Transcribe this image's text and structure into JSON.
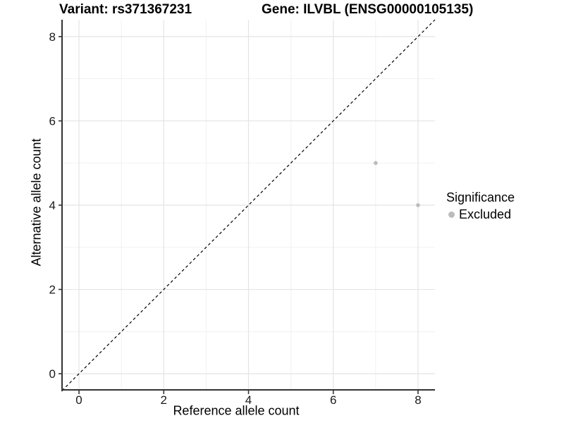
{
  "chart_data": {
    "type": "scatter",
    "titles": {
      "left": "Variant: rs371367231",
      "right": "Gene: ILVBL (ENSG00000105135)"
    },
    "xlabel": "Reference allele count",
    "ylabel": "Alternative allele count",
    "xlim": [
      -0.4,
      8.4
    ],
    "ylim": [
      -0.4,
      8.4
    ],
    "xticks": [
      0,
      2,
      4,
      6,
      8
    ],
    "yticks": [
      0,
      2,
      4,
      6,
      8
    ],
    "minor_xticks": [
      1,
      3,
      5,
      7
    ],
    "minor_yticks": [
      1,
      3,
      5,
      7
    ],
    "grid": "major+minor",
    "legend": {
      "title": "Significance",
      "position": "right",
      "items": [
        {
          "label": "Excluded",
          "color": "#bcbcbc",
          "marker": "circle"
        }
      ]
    },
    "series": [
      {
        "name": "Excluded",
        "color": "#bcbcbc",
        "marker_radius": 2.8,
        "points": [
          {
            "x": 7,
            "y": 5
          },
          {
            "x": 8,
            "y": 4
          }
        ]
      }
    ],
    "reference_line": {
      "style": "dashed",
      "slope": 1,
      "intercept": 0,
      "color": "#000000"
    }
  },
  "colors": {
    "background": "#ffffff",
    "grid_major": "#e4e4e4",
    "grid_minor": "#f1f1f1",
    "axis_line": "#333333",
    "tick_mark": "#333333",
    "tick_label": "#1a1a1a"
  }
}
